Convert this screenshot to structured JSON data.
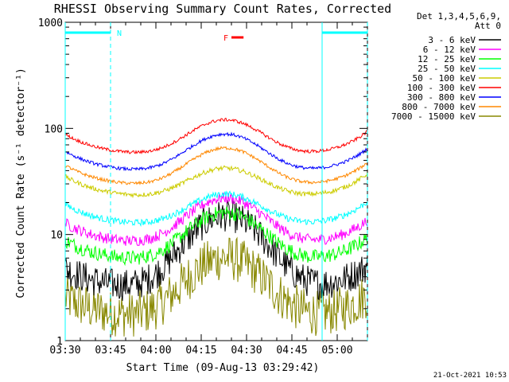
{
  "chart_data": {
    "type": "line",
    "title": "RHESSI Observing Summary Count Rates, Corrected",
    "xlabel": "Start Time (09-Aug-13 03:29:42)",
    "ylabel": "Corrected Count Rate (s⁻¹ detector⁻¹)",
    "yscale": "log",
    "ylim": [
      1,
      1000
    ],
    "xlim_minutes": [
      0,
      100
    ],
    "x_tick_minutes": [
      0,
      15,
      30,
      45,
      60,
      75,
      90
    ],
    "x_tick_labels": [
      "03:30",
      "03:45",
      "04:00",
      "04:15",
      "04:30",
      "04:45",
      "05:00"
    ],
    "y_ticks": [
      1,
      10,
      100,
      1000
    ],
    "y_tick_labels": [
      "1",
      "10",
      "100",
      "1000"
    ],
    "legend_header": [
      "Det 1,3,4,5,6,9,",
      "Att 0"
    ],
    "legend_position": "right",
    "series": [
      {
        "name": "3 - 6 keV",
        "color": "#000000",
        "base": 3.0,
        "peak": 15,
        "noise": 0.35
      },
      {
        "name": "6 - 12 keV",
        "color": "#ff00ff",
        "base": 8.0,
        "peak": 22,
        "noise": 0.12
      },
      {
        "name": "12 - 25 keV",
        "color": "#00ff00",
        "base": 5.5,
        "peak": 16,
        "noise": 0.16
      },
      {
        "name": "25 - 50 keV",
        "color": "#00ffff",
        "base": 12,
        "peak": 24,
        "noise": 0.07
      },
      {
        "name": "50 - 100 keV",
        "color": "#cccc00",
        "base": 22,
        "peak": 42,
        "noise": 0.05
      },
      {
        "name": "100 - 300 keV",
        "color": "#ff0000",
        "base": 55,
        "peak": 120,
        "noise": 0.035
      },
      {
        "name": "300 - 800 keV",
        "color": "#0000ff",
        "base": 38,
        "peak": 88,
        "noise": 0.035
      },
      {
        "name": "800 - 7000 keV",
        "color": "#ff8800",
        "base": 28,
        "peak": 65,
        "noise": 0.035
      },
      {
        "name": "7000 - 15000 keV",
        "color": "#888800",
        "base": 1.6,
        "peak": 6,
        "noise": 0.5
      }
    ],
    "annotations": [
      {
        "label": "N",
        "color": "#00ffff",
        "x_start_minutes": 0,
        "x_end_minutes": 15
      },
      {
        "label": "",
        "color": "#00ffff",
        "x_start_minutes": 85,
        "x_end_minutes": 100
      },
      {
        "label": "F",
        "color": "#ff0000",
        "x_start_minutes": 55,
        "x_end_minutes": 59
      }
    ],
    "shaded_verticals_minutes": [
      0,
      15,
      85,
      100
    ]
  },
  "footer": {
    "timestamp": "21-Oct-2021 10:53"
  }
}
